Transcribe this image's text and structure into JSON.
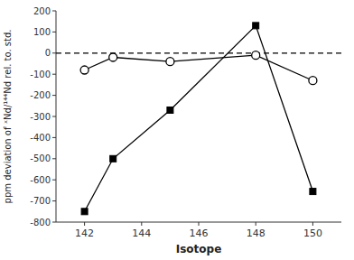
{
  "chart_data": {
    "type": "line",
    "x": [
      142,
      143,
      145,
      148,
      150
    ],
    "series": [
      {
        "color": "#000000",
        "marker": "square",
        "values": [
          -750,
          -500,
          -270,
          130,
          -655
        ]
      },
      {
        "color": "#000000",
        "marker": "circle-open",
        "values": [
          -80,
          -20,
          -40,
          -10,
          -130
        ]
      }
    ],
    "reference_lines": [
      {
        "y": 0,
        "line_style": "dashed",
        "color": "#000000"
      }
    ],
    "xlabel": "Isotope",
    "ylabel": "ppm deviation of ˣNd/¹⁴⁴Nd rel. to. std.",
    "xlim": [
      141,
      151
    ],
    "ylim": [
      -800,
      200
    ],
    "xticks": [
      142,
      144,
      146,
      148,
      150
    ],
    "yticks": [
      -800,
      -700,
      -600,
      -500,
      -400,
      -300,
      -200,
      -100,
      0,
      100,
      200
    ],
    "grid": false
  }
}
